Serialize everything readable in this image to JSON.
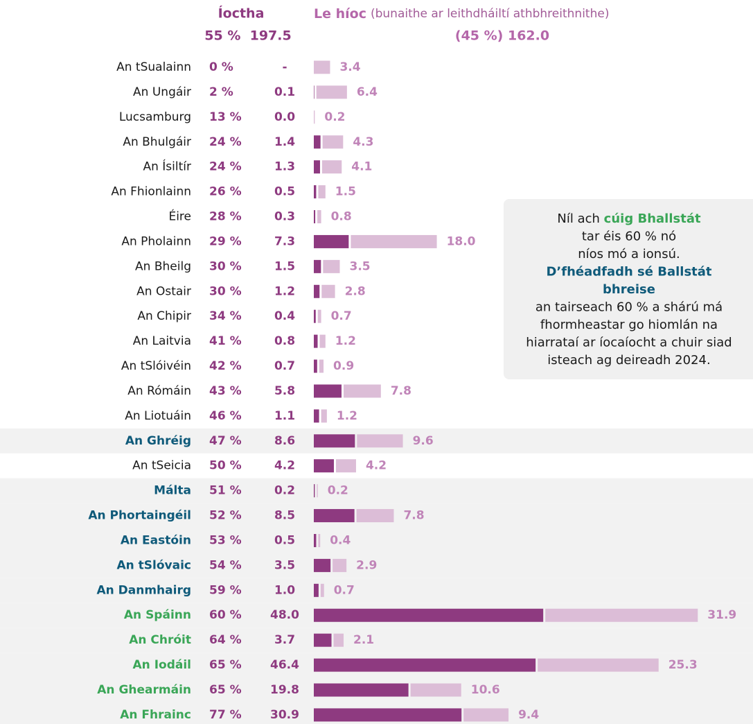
{
  "chart_data": {
    "type": "bar",
    "orientation": "horizontal",
    "stacked": true,
    "header": {
      "paid_total": "55 %  197.5",
      "remaining_note": "(bunaithe ar leithdháiltí athbhreithnithe)",
      "remaining_total": "(45 %) 162.0"
    },
    "categories": [
      "An tSualainn",
      "An Ungáir",
      "Lucsamburg",
      "An Bhulgáir",
      "An Ísiltír",
      "An Fhionlainn",
      "Éire",
      "An Pholainn",
      "An Bheilg",
      "An Ostair",
      "An Chipir",
      "An Laitvia",
      "An tSlóivéin",
      "An Rómáin",
      "An Liotuáin",
      "An Ghréig",
      "An tSeicia",
      "Málta",
      "An Phortaingéil",
      "An Eastóin",
      "An tSlóvaic",
      "An Danmhairg",
      "An Spáinn",
      "An Chróit",
      "An Iodáil",
      "An Ghearmáin",
      "An Fhrainc"
    ],
    "category_colors": [
      "#1a1a1a",
      "#1a1a1a",
      "#1a1a1a",
      "#1a1a1a",
      "#1a1a1a",
      "#1a1a1a",
      "#1a1a1a",
      "#1a1a1a",
      "#1a1a1a",
      "#1a1a1a",
      "#1a1a1a",
      "#1a1a1a",
      "#1a1a1a",
      "#1a1a1a",
      "#1a1a1a",
      "#0f5a7a",
      "#1a1a1a",
      "#0f5a7a",
      "#0f5a7a",
      "#0f5a7a",
      "#0f5a7a",
      "#0f5a7a",
      "#3aa657",
      "#3aa657",
      "#3aa657",
      "#3aa657",
      "#3aa657"
    ],
    "shares": {
      "values": [
        0,
        2,
        13,
        24,
        24,
        26,
        28,
        29,
        30,
        30,
        34,
        41,
        42,
        43,
        46,
        47,
        50,
        51,
        52,
        53,
        54,
        59,
        60,
        64,
        65,
        65,
        77
      ],
      "value_labels": [
        "0 %",
        "2 %",
        "13 %",
        "24 %",
        "24 %",
        "26 %",
        "28 %",
        "29 %",
        "30 %",
        "30 %",
        "34 %",
        "41 %",
        "42 %",
        "43 %",
        "46 %",
        "47 %",
        "50 %",
        "51 %",
        "52 %",
        "53 %",
        "54 %",
        "59 %",
        "60 %",
        "64 %",
        "65 %",
        "65 %",
        "77 %"
      ]
    },
    "series": [
      {
        "name": "Íoctha",
        "color": "#8e3a80",
        "values": [
          null,
          0.1,
          0.0,
          1.4,
          1.3,
          0.5,
          0.3,
          7.3,
          1.5,
          1.2,
          0.4,
          0.8,
          0.7,
          5.8,
          1.1,
          8.6,
          4.2,
          0.2,
          8.5,
          0.5,
          3.5,
          1.0,
          48.0,
          3.7,
          46.4,
          19.8,
          30.9
        ],
        "value_labels": [
          "-",
          "0.1",
          "0.0",
          "1.4",
          "1.3",
          "0.5",
          "0.3",
          "7.3",
          "1.5",
          "1.2",
          "0.4",
          "0.8",
          "0.7",
          "5.8",
          "1.1",
          "8.6",
          "4.2",
          "0.2",
          "8.5",
          "0.5",
          "3.5",
          "1.0",
          "48.0",
          "3.7",
          "46.4",
          "19.8",
          "30.9"
        ]
      },
      {
        "name": "Le híoc",
        "color": "#dcbdd7",
        "values": [
          3.4,
          6.4,
          0.2,
          4.3,
          4.1,
          1.5,
          0.8,
          18.0,
          3.5,
          2.8,
          0.7,
          1.2,
          0.9,
          7.8,
          1.2,
          9.6,
          4.2,
          0.2,
          7.8,
          0.4,
          2.9,
          0.7,
          31.9,
          2.1,
          25.3,
          10.6,
          9.4
        ],
        "value_labels": [
          "3.4",
          "6.4",
          "0.2",
          "4.3",
          "4.1",
          "1.5",
          "0.8",
          "18.0",
          "3.5",
          "2.8",
          "0.7",
          "1.2",
          "0.9",
          "7.8",
          "1.2",
          "9.6",
          "4.2",
          "0.2",
          "7.8",
          "0.4",
          "2.9",
          "0.7",
          "31.9",
          "2.1",
          "25.3",
          "10.6",
          "9.4"
        ]
      }
    ],
    "annotation": [
      [
        {
          "text": "Níl ach ",
          "color": "#1a1a1a"
        },
        {
          "text": "cúig Bhallstát",
          "color": "#3aa657",
          "bold": true
        }
      ],
      [
        {
          "text": "tar éis 60 % nó",
          "color": "#1a1a1a"
        }
      ],
      [
        {
          "text": "níos mó a ionsú.",
          "color": "#1a1a1a"
        }
      ],
      [
        {
          "text": "D’fhéadfadh sé Ballstát",
          "color": "#0f5a7a",
          "bold": true
        }
      ],
      [
        {
          "text": "bhreise",
          "color": "#0f5a7a",
          "bold": true
        }
      ],
      [
        {
          "text": "an tairseach 60 % a shárú má",
          "color": "#1a1a1a"
        }
      ],
      [
        {
          "text": "fhormheastar go hiomlán na",
          "color": "#1a1a1a"
        }
      ],
      [
        {
          "text": "hiarrataí ar íocaíocht a chuir siad",
          "color": "#1a1a1a"
        }
      ],
      [
        {
          "text": "isteach ag deireadh 2024.",
          "color": "#1a1a1a"
        }
      ]
    ]
  }
}
